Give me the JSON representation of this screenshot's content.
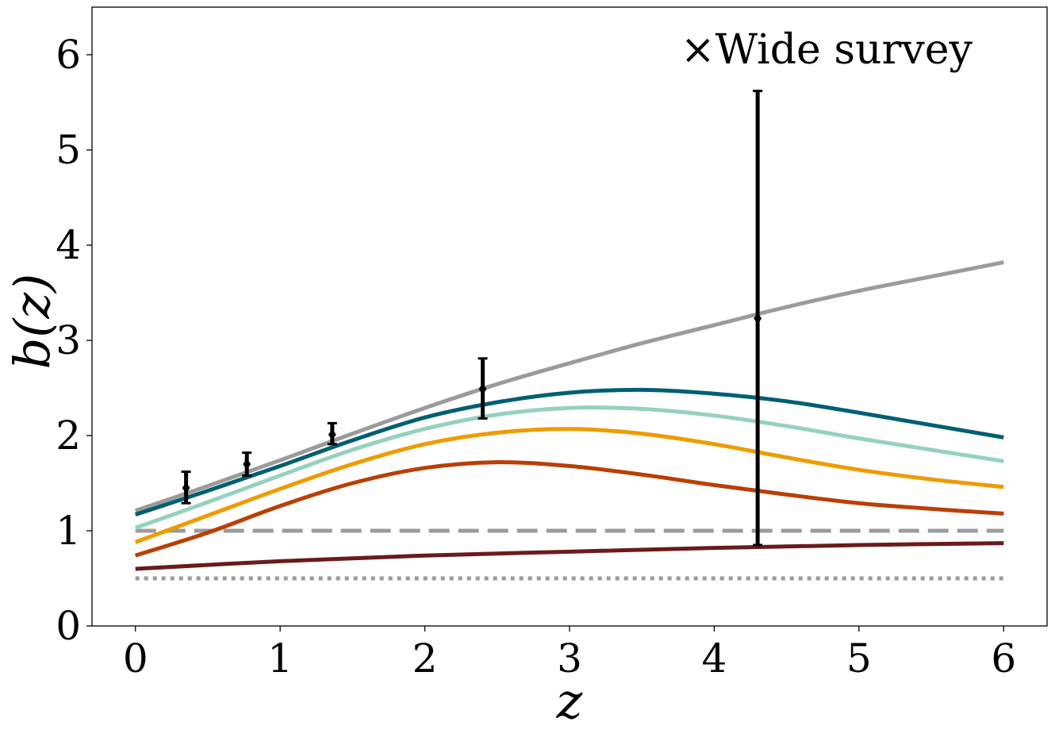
{
  "chart_data": {
    "type": "line",
    "xlabel": "z",
    "ylabel": "b(z)",
    "xlim": [
      -0.3,
      6.3
    ],
    "ylim": [
      0,
      6.5
    ],
    "xticks": [
      "0",
      "1",
      "2",
      "3",
      "4",
      "5",
      "6"
    ],
    "yticks": [
      "0",
      "1",
      "2",
      "3",
      "4",
      "5",
      "6"
    ],
    "grid": false,
    "annotation": "×Wide survey",
    "series": [
      {
        "color": "#9b9b9b",
        "style": "solid",
        "x": [
          0,
          0.5,
          1,
          1.5,
          2,
          2.5,
          3,
          3.5,
          4,
          4.5,
          5,
          5.5,
          6
        ],
        "y": [
          1.21,
          1.47,
          1.74,
          2.02,
          2.29,
          2.54,
          2.76,
          2.97,
          3.16,
          3.35,
          3.52,
          3.67,
          3.82
        ]
      },
      {
        "color": "#005f73",
        "style": "solid",
        "x": [
          0,
          0.5,
          1,
          1.5,
          2,
          2.5,
          3,
          3.5,
          4,
          4.5,
          5,
          5.5,
          6
        ],
        "y": [
          1.17,
          1.42,
          1.68,
          1.95,
          2.19,
          2.35,
          2.45,
          2.48,
          2.44,
          2.36,
          2.24,
          2.11,
          1.98
        ]
      },
      {
        "color": "#94d2bd",
        "style": "solid",
        "x": [
          0,
          0.5,
          1,
          1.5,
          2,
          2.5,
          3,
          3.5,
          4,
          4.5,
          5,
          5.5,
          6
        ],
        "y": [
          1.03,
          1.3,
          1.58,
          1.85,
          2.07,
          2.22,
          2.29,
          2.28,
          2.21,
          2.1,
          1.97,
          1.85,
          1.73
        ]
      },
      {
        "color": "#ee9b00",
        "style": "solid",
        "x": [
          0,
          0.5,
          1,
          1.5,
          2,
          2.5,
          3,
          3.5,
          4,
          4.5,
          5,
          5.5,
          6
        ],
        "y": [
          0.88,
          1.16,
          1.44,
          1.7,
          1.91,
          2.03,
          2.07,
          2.02,
          1.91,
          1.77,
          1.64,
          1.54,
          1.46
        ]
      },
      {
        "color": "#bb3e03",
        "style": "solid",
        "x": [
          0,
          0.5,
          1,
          1.5,
          2,
          2.5,
          3,
          3.5,
          4,
          4.5,
          5,
          5.5,
          6
        ],
        "y": [
          0.74,
          0.98,
          1.26,
          1.5,
          1.66,
          1.72,
          1.68,
          1.59,
          1.48,
          1.38,
          1.29,
          1.23,
          1.18
        ]
      },
      {
        "color": "#6b1a1a",
        "style": "solid",
        "x": [
          0,
          1,
          2,
          3,
          4,
          5,
          6
        ],
        "y": [
          0.6,
          0.68,
          0.74,
          0.78,
          0.82,
          0.85,
          0.87
        ]
      },
      {
        "color": "#9b9b9b",
        "style": "dashed",
        "x": [
          0,
          6
        ],
        "y": [
          1.0,
          1.0
        ]
      },
      {
        "color": "#9b9b9b",
        "style": "dotted",
        "x": [
          0,
          6
        ],
        "y": [
          0.5,
          0.5
        ]
      }
    ],
    "errorbars": {
      "color": "#000000",
      "x": [
        0.35,
        0.77,
        1.36,
        2.4,
        4.3
      ],
      "y": [
        1.45,
        1.7,
        2.01,
        2.49,
        3.23
      ],
      "yerr_low": [
        0.16,
        0.12,
        0.1,
        0.31,
        2.38
      ],
      "yerr_high": [
        0.17,
        0.12,
        0.12,
        0.32,
        2.39
      ]
    }
  }
}
